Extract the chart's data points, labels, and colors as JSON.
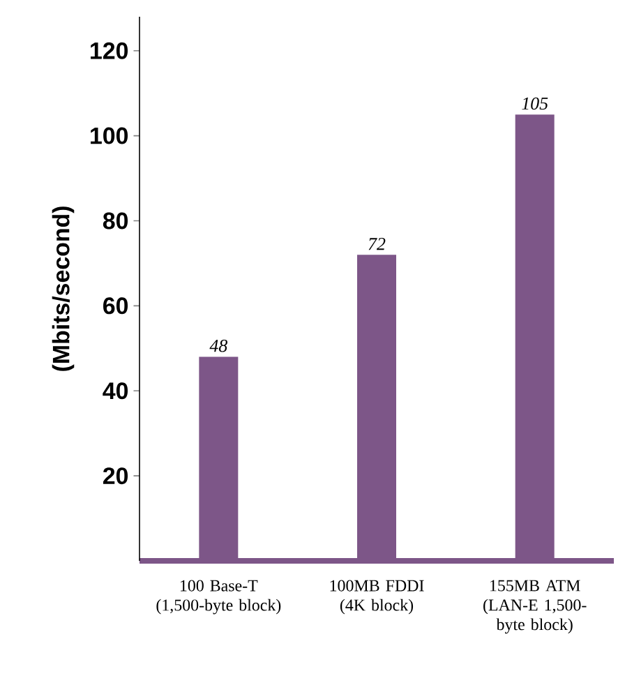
{
  "chart_data": {
    "type": "bar",
    "ylabel": "(Mbits/second)",
    "categories": [
      "100 Base-T (1,500-byte block)",
      "100MB FDDI (4K block)",
      "155MB ATM (LAN-E 1,500-byte block)"
    ],
    "values": [
      48,
      72,
      105
    ],
    "color": "#7d5688",
    "data_labels": true,
    "ylim": [
      0,
      128
    ],
    "yticks": [
      20,
      40,
      60,
      80,
      100,
      120
    ]
  }
}
